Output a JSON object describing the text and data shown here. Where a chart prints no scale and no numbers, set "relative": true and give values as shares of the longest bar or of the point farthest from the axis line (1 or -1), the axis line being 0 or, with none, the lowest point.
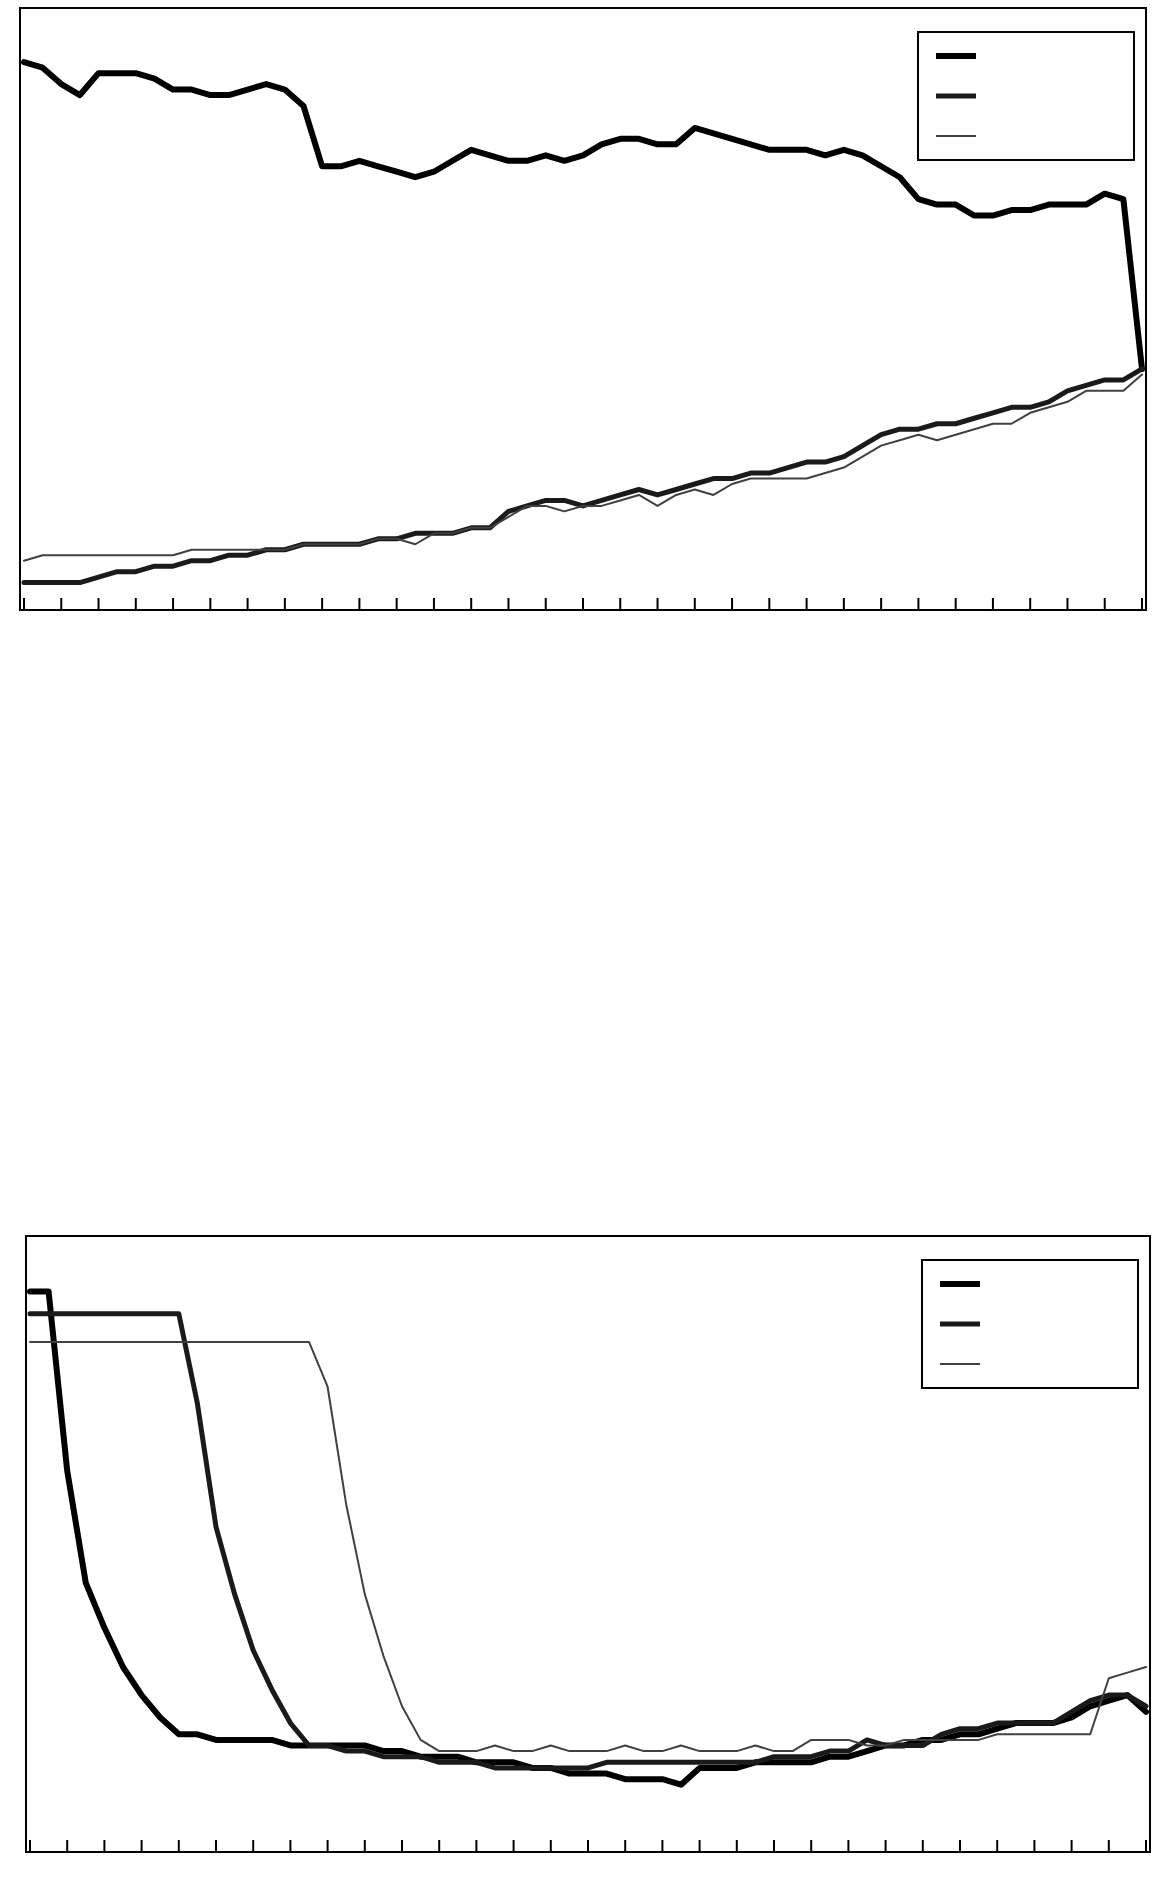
{
  "chart_data": [
    {
      "type": "line",
      "relative": true,
      "categories": [
        null,
        null,
        null,
        null,
        null,
        null,
        null,
        null,
        null,
        null,
        null,
        null,
        null,
        null,
        null,
        null,
        null,
        null,
        null,
        null,
        null,
        null,
        null,
        null,
        null,
        null,
        null,
        null,
        null,
        null,
        null,
        null,
        null,
        null,
        null,
        null,
        null,
        null,
        null,
        null,
        null,
        null,
        null,
        null,
        null,
        null,
        null,
        null,
        null,
        null,
        null,
        null,
        null,
        null,
        null,
        null,
        null,
        null,
        null,
        null,
        null
      ],
      "series": [
        {
          "color": "#000000",
          "values": [
            1.0,
            0.99,
            0.96,
            0.94,
            0.98,
            0.98,
            0.98,
            0.97,
            0.95,
            0.95,
            0.94,
            0.94,
            0.95,
            0.96,
            0.95,
            0.92,
            0.81,
            0.81,
            0.82,
            0.81,
            0.8,
            0.79,
            0.8,
            0.82,
            0.84,
            0.83,
            0.82,
            0.82,
            0.83,
            0.82,
            0.83,
            0.85,
            0.86,
            0.86,
            0.85,
            0.85,
            0.88,
            0.87,
            0.86,
            0.85,
            0.84,
            0.84,
            0.84,
            0.83,
            0.84,
            0.83,
            0.81,
            0.79,
            0.75,
            0.74,
            0.74,
            0.72,
            0.72,
            0.73,
            0.73,
            0.74,
            0.74,
            0.74,
            0.76,
            0.75,
            0.44
          ]
        },
        {
          "color": "#1a1a1a",
          "values": [
            0.05,
            0.05,
            0.05,
            0.05,
            0.06,
            0.07,
            0.07,
            0.08,
            0.08,
            0.09,
            0.09,
            0.1,
            0.1,
            0.11,
            0.11,
            0.12,
            0.12,
            0.12,
            0.12,
            0.13,
            0.13,
            0.14,
            0.14,
            0.14,
            0.15,
            0.15,
            0.18,
            0.19,
            0.2,
            0.2,
            0.19,
            0.2,
            0.21,
            0.22,
            0.21,
            0.22,
            0.23,
            0.24,
            0.24,
            0.25,
            0.25,
            0.26,
            0.27,
            0.27,
            0.28,
            0.3,
            0.32,
            0.33,
            0.33,
            0.34,
            0.34,
            0.35,
            0.36,
            0.37,
            0.37,
            0.38,
            0.4,
            0.41,
            0.42,
            0.42,
            0.44
          ]
        },
        {
          "color": "#404040",
          "values": [
            0.09,
            0.1,
            0.1,
            0.1,
            0.1,
            0.1,
            0.1,
            0.1,
            0.1,
            0.11,
            0.11,
            0.11,
            0.11,
            0.11,
            0.11,
            0.12,
            0.12,
            0.12,
            0.12,
            0.13,
            0.13,
            0.12,
            0.14,
            0.14,
            0.15,
            0.15,
            0.17,
            0.19,
            0.19,
            0.18,
            0.19,
            0.19,
            0.2,
            0.21,
            0.19,
            0.21,
            0.22,
            0.21,
            0.23,
            0.24,
            0.24,
            0.24,
            0.24,
            0.25,
            0.26,
            0.28,
            0.3,
            0.31,
            0.32,
            0.31,
            0.32,
            0.33,
            0.34,
            0.34,
            0.36,
            0.37,
            0.38,
            0.4,
            0.4,
            0.4,
            0.43
          ]
        }
      ]
    },
    {
      "type": "line",
      "relative": true,
      "categories": [
        null,
        null,
        null,
        null,
        null,
        null,
        null,
        null,
        null,
        null,
        null,
        null,
        null,
        null,
        null,
        null,
        null,
        null,
        null,
        null,
        null,
        null,
        null,
        null,
        null,
        null,
        null,
        null,
        null,
        null,
        null,
        null,
        null,
        null,
        null,
        null,
        null,
        null,
        null,
        null,
        null,
        null,
        null,
        null,
        null,
        null,
        null,
        null,
        null,
        null,
        null,
        null,
        null,
        null,
        null,
        null,
        null,
        null,
        null,
        null,
        null
      ],
      "series": [
        {
          "color": "#000000",
          "values": [
            1.0,
            1.0,
            0.68,
            0.48,
            0.4,
            0.33,
            0.28,
            0.24,
            0.21,
            0.21,
            0.2,
            0.2,
            0.2,
            0.2,
            0.19,
            0.19,
            0.19,
            0.19,
            0.19,
            0.18,
            0.18,
            0.17,
            0.17,
            0.17,
            0.16,
            0.16,
            0.16,
            0.15,
            0.15,
            0.14,
            0.14,
            0.14,
            0.13,
            0.13,
            0.13,
            0.12,
            0.15,
            0.15,
            0.15,
            0.16,
            0.16,
            0.16,
            0.16,
            0.17,
            0.17,
            0.18,
            0.19,
            0.19,
            0.2,
            0.2,
            0.21,
            0.21,
            0.22,
            0.23,
            0.23,
            0.23,
            0.24,
            0.26,
            0.27,
            0.28,
            0.25
          ]
        },
        {
          "color": "#1a1a1a",
          "values": [
            0.96,
            0.96,
            0.96,
            0.96,
            0.96,
            0.96,
            0.96,
            0.96,
            0.96,
            0.8,
            0.58,
            0.46,
            0.36,
            0.29,
            0.23,
            0.19,
            0.19,
            0.18,
            0.18,
            0.17,
            0.17,
            0.17,
            0.16,
            0.16,
            0.16,
            0.15,
            0.15,
            0.15,
            0.15,
            0.15,
            0.15,
            0.16,
            0.16,
            0.16,
            0.16,
            0.16,
            0.16,
            0.16,
            0.16,
            0.16,
            0.17,
            0.17,
            0.17,
            0.18,
            0.18,
            0.2,
            0.19,
            0.19,
            0.19,
            0.21,
            0.22,
            0.22,
            0.23,
            0.23,
            0.23,
            0.23,
            0.25,
            0.27,
            0.28,
            0.28,
            0.26
          ]
        },
        {
          "color": "#404040",
          "values": [
            0.91,
            0.91,
            0.91,
            0.91,
            0.91,
            0.91,
            0.91,
            0.91,
            0.91,
            0.91,
            0.91,
            0.91,
            0.91,
            0.91,
            0.91,
            0.91,
            0.83,
            0.62,
            0.46,
            0.35,
            0.26,
            0.2,
            0.18,
            0.18,
            0.18,
            0.19,
            0.18,
            0.18,
            0.19,
            0.18,
            0.18,
            0.18,
            0.19,
            0.18,
            0.18,
            0.19,
            0.18,
            0.18,
            0.18,
            0.19,
            0.18,
            0.18,
            0.2,
            0.2,
            0.2,
            0.19,
            0.19,
            0.2,
            0.2,
            0.2,
            0.2,
            0.2,
            0.21,
            0.21,
            0.21,
            0.21,
            0.21,
            0.21,
            0.31,
            0.32,
            0.33
          ]
        }
      ]
    }
  ]
}
